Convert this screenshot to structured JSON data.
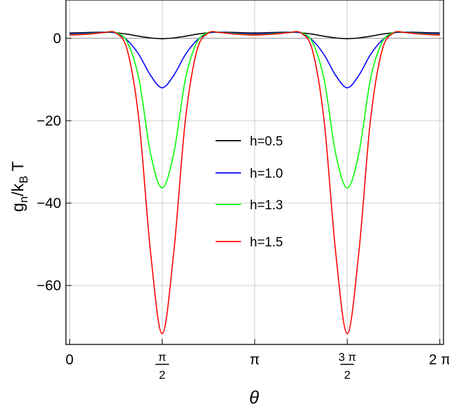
{
  "chart_data": {
    "type": "line",
    "title": "",
    "xlabel": "θ",
    "ylabel": "g_n/k_B T",
    "x_unit": "π",
    "xlim": [
      -0.02,
      2.02
    ],
    "ylim": [
      -74.3,
      9.3
    ],
    "grid": true,
    "legend_placement": "center",
    "x_ticks": [
      {
        "value": 0,
        "num": "0",
        "den": ""
      },
      {
        "value": 0.5,
        "num": "π",
        "den": "2"
      },
      {
        "value": 1,
        "num": "π",
        "den": ""
      },
      {
        "value": 1.5,
        "num": "3 π",
        "den": "2"
      },
      {
        "value": 2,
        "num": "2 π",
        "den": ""
      }
    ],
    "y_ticks": [
      {
        "value": 0,
        "label": "0"
      },
      {
        "value": -20,
        "label": "−20"
      },
      {
        "value": -40,
        "label": "−40"
      },
      {
        "value": -60,
        "label": "−60"
      }
    ],
    "x": [
      0,
      0.0625,
      0.125,
      0.1875,
      0.25,
      0.3125,
      0.375,
      0.4375,
      0.5,
      0.5625,
      0.625,
      0.6875,
      0.75,
      0.8125,
      0.875,
      0.9375,
      1,
      1.0625,
      1.125,
      1.1875,
      1.25,
      1.3125,
      1.375,
      1.4375,
      1.5,
      1.5625,
      1.625,
      1.6875,
      1.75,
      1.8125,
      1.875,
      1.9375,
      2
    ],
    "series": [
      {
        "name": "h=0.5",
        "color": "#000000",
        "values": [
          1.3,
          1.35,
          1.45,
          1.5,
          1.35,
          1.0,
          0.5,
          0.1,
          -0.1,
          0.1,
          0.5,
          1.0,
          1.35,
          1.5,
          1.45,
          1.35,
          1.3,
          1.35,
          1.45,
          1.5,
          1.35,
          1.0,
          0.5,
          0.1,
          -0.1,
          0.1,
          0.5,
          1.0,
          1.35,
          1.5,
          1.45,
          1.35,
          1.3
        ]
      },
      {
        "name": "h=1.0",
        "color": "#0000ff",
        "values": [
          1.1,
          1.15,
          1.3,
          1.5,
          1.3,
          -0.5,
          -4,
          -9,
          -12,
          -9,
          -4,
          -0.5,
          1.3,
          1.5,
          1.3,
          1.15,
          1.1,
          1.15,
          1.3,
          1.5,
          1.3,
          -0.5,
          -4,
          -9,
          -12,
          -9,
          -4,
          -0.5,
          1.3,
          1.5,
          1.3,
          1.15,
          1.1
        ]
      },
      {
        "name": "h=1.3",
        "color": "#00ff00",
        "values": [
          0.9,
          1.0,
          1.2,
          1.45,
          1.4,
          -1,
          -10,
          -28,
          -36.3,
          -28,
          -10,
          -1,
          1.4,
          1.45,
          1.2,
          1.0,
          0.9,
          1.0,
          1.2,
          1.45,
          1.4,
          -1,
          -10,
          -28,
          -36.3,
          -28,
          -10,
          -1,
          1.4,
          1.45,
          1.2,
          1.0,
          0.9
        ]
      },
      {
        "name": "h=1.5",
        "color": "#ff0000",
        "values": [
          0.8,
          0.9,
          1.1,
          1.4,
          1.3,
          -3,
          -20,
          -52,
          -71.7,
          -52,
          -20,
          -3,
          1.3,
          1.4,
          1.1,
          0.9,
          0.8,
          0.9,
          1.1,
          1.4,
          1.3,
          -3,
          -20,
          -52,
          -71.7,
          -52,
          -20,
          -3,
          1.3,
          1.4,
          1.1,
          0.9,
          0.8
        ]
      }
    ]
  }
}
